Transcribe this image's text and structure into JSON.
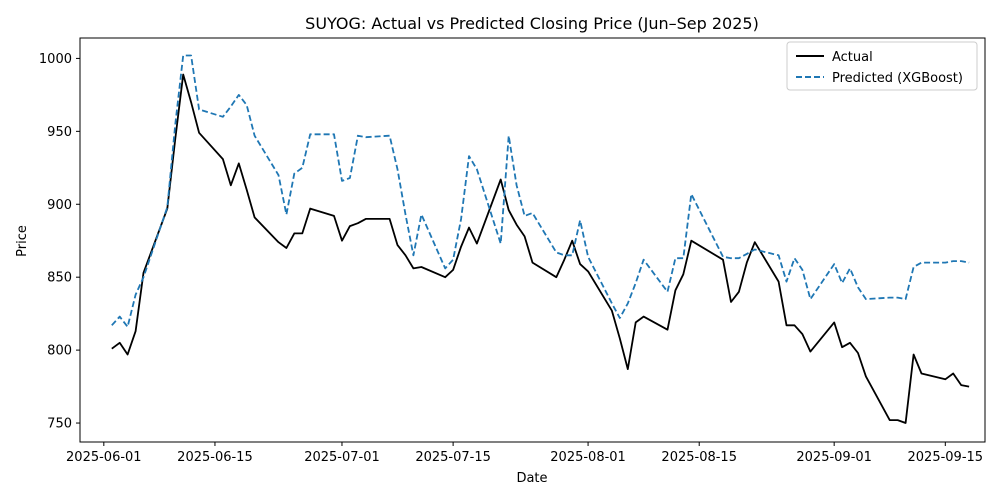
{
  "chart_data": {
    "type": "line",
    "title": "SUYOG: Actual vs Predicted Closing Price (Jun–Sep 2025)",
    "xlabel": "Date",
    "ylabel": "Price",
    "xlim": [
      "2025-05-29",
      "2025-09-20"
    ],
    "ylim": [
      737,
      1014
    ],
    "x_ticks": [
      "2025-06-01",
      "2025-06-15",
      "2025-07-01",
      "2025-07-15",
      "2025-08-01",
      "2025-08-15",
      "2025-09-01",
      "2025-09-15"
    ],
    "y_ticks": [
      750,
      800,
      850,
      900,
      950,
      1000
    ],
    "grid": false,
    "legend_position": "top-right",
    "colors": {
      "Actual": "#000000",
      "Predicted (XGBoost)": "#1f77b4"
    },
    "series": [
      {
        "name": "Actual",
        "style": "solid",
        "points": [
          [
            "2025-06-02",
            801
          ],
          [
            "2025-06-03",
            805
          ],
          [
            "2025-06-04",
            797
          ],
          [
            "2025-06-05",
            813
          ],
          [
            "2025-06-06",
            853
          ],
          [
            "2025-06-09",
            897
          ],
          [
            "2025-06-10",
            945
          ],
          [
            "2025-06-11",
            989
          ],
          [
            "2025-06-12",
            970
          ],
          [
            "2025-06-13",
            949
          ],
          [
            "2025-06-16",
            931
          ],
          [
            "2025-06-17",
            913
          ],
          [
            "2025-06-18",
            928
          ],
          [
            "2025-06-19",
            910
          ],
          [
            "2025-06-20",
            891
          ],
          [
            "2025-06-23",
            874
          ],
          [
            "2025-06-24",
            870
          ],
          [
            "2025-06-25",
            880
          ],
          [
            "2025-06-26",
            880
          ],
          [
            "2025-06-27",
            897
          ],
          [
            "2025-06-30",
            892
          ],
          [
            "2025-07-01",
            875
          ],
          [
            "2025-07-02",
            885
          ],
          [
            "2025-07-03",
            887
          ],
          [
            "2025-07-04",
            890
          ],
          [
            "2025-07-07",
            890
          ],
          [
            "2025-07-08",
            872
          ],
          [
            "2025-07-09",
            865
          ],
          [
            "2025-07-10",
            856
          ],
          [
            "2025-07-11",
            857
          ],
          [
            "2025-07-14",
            850
          ],
          [
            "2025-07-15",
            855
          ],
          [
            "2025-07-16",
            871
          ],
          [
            "2025-07-17",
            884
          ],
          [
            "2025-07-18",
            873
          ],
          [
            "2025-07-21",
            917
          ],
          [
            "2025-07-22",
            896
          ],
          [
            "2025-07-23",
            886
          ],
          [
            "2025-07-24",
            878
          ],
          [
            "2025-07-25",
            860
          ],
          [
            "2025-07-28",
            850
          ],
          [
            "2025-07-29",
            862
          ],
          [
            "2025-07-30",
            875
          ],
          [
            "2025-07-31",
            859
          ],
          [
            "2025-08-01",
            854
          ],
          [
            "2025-08-04",
            827
          ],
          [
            "2025-08-05",
            808
          ],
          [
            "2025-08-06",
            787
          ],
          [
            "2025-08-07",
            819
          ],
          [
            "2025-08-08",
            823
          ],
          [
            "2025-08-11",
            814
          ],
          [
            "2025-08-12",
            841
          ],
          [
            "2025-08-13",
            852
          ],
          [
            "2025-08-14",
            875
          ],
          [
            "2025-08-18",
            862
          ],
          [
            "2025-08-19",
            833
          ],
          [
            "2025-08-20",
            840
          ],
          [
            "2025-08-21",
            860
          ],
          [
            "2025-08-22",
            874
          ],
          [
            "2025-08-25",
            847
          ],
          [
            "2025-08-26",
            817
          ],
          [
            "2025-08-27",
            817
          ],
          [
            "2025-08-28",
            811
          ],
          [
            "2025-08-29",
            799
          ],
          [
            "2025-09-01",
            819
          ],
          [
            "2025-09-02",
            802
          ],
          [
            "2025-09-03",
            805
          ],
          [
            "2025-09-04",
            798
          ],
          [
            "2025-09-05",
            782
          ],
          [
            "2025-09-08",
            752
          ],
          [
            "2025-09-09",
            752
          ],
          [
            "2025-09-10",
            750
          ],
          [
            "2025-09-11",
            797
          ],
          [
            "2025-09-12",
            784
          ],
          [
            "2025-09-15",
            780
          ],
          [
            "2025-09-16",
            784
          ],
          [
            "2025-09-17",
            776
          ],
          [
            "2025-09-18",
            775
          ]
        ]
      },
      {
        "name": "Predicted (XGBoost)",
        "style": "dashed",
        "points": [
          [
            "2025-06-02",
            817
          ],
          [
            "2025-06-03",
            823
          ],
          [
            "2025-06-04",
            816
          ],
          [
            "2025-06-05",
            838
          ],
          [
            "2025-06-06",
            850
          ],
          [
            "2025-06-09",
            898
          ],
          [
            "2025-06-10",
            955
          ],
          [
            "2025-06-11",
            1002
          ],
          [
            "2025-06-12",
            1002
          ],
          [
            "2025-06-13",
            965
          ],
          [
            "2025-06-16",
            960
          ],
          [
            "2025-06-17",
            967
          ],
          [
            "2025-06-18",
            975
          ],
          [
            "2025-06-19",
            968
          ],
          [
            "2025-06-20",
            947
          ],
          [
            "2025-06-23",
            920
          ],
          [
            "2025-06-24",
            893
          ],
          [
            "2025-06-25",
            921
          ],
          [
            "2025-06-26",
            925
          ],
          [
            "2025-06-27",
            948
          ],
          [
            "2025-06-30",
            948
          ],
          [
            "2025-07-01",
            916
          ],
          [
            "2025-07-02",
            918
          ],
          [
            "2025-07-03",
            947
          ],
          [
            "2025-07-04",
            946
          ],
          [
            "2025-07-07",
            947
          ],
          [
            "2025-07-08",
            924
          ],
          [
            "2025-07-09",
            893
          ],
          [
            "2025-07-10",
            865
          ],
          [
            "2025-07-11",
            893
          ],
          [
            "2025-07-14",
            856
          ],
          [
            "2025-07-15",
            862
          ],
          [
            "2025-07-16",
            890
          ],
          [
            "2025-07-17",
            933
          ],
          [
            "2025-07-18",
            924
          ],
          [
            "2025-07-21",
            873
          ],
          [
            "2025-07-22",
            947
          ],
          [
            "2025-07-23",
            913
          ],
          [
            "2025-07-24",
            892
          ],
          [
            "2025-07-25",
            894
          ],
          [
            "2025-07-28",
            867
          ],
          [
            "2025-07-29",
            865
          ],
          [
            "2025-07-30",
            865
          ],
          [
            "2025-07-31",
            889
          ],
          [
            "2025-08-01",
            864
          ],
          [
            "2025-08-04",
            832
          ],
          [
            "2025-08-05",
            822
          ],
          [
            "2025-08-06",
            832
          ],
          [
            "2025-08-07",
            846
          ],
          [
            "2025-08-08",
            862
          ],
          [
            "2025-08-11",
            840
          ],
          [
            "2025-08-12",
            863
          ],
          [
            "2025-08-13",
            863
          ],
          [
            "2025-08-14",
            907
          ],
          [
            "2025-08-18",
            864
          ],
          [
            "2025-08-19",
            863
          ],
          [
            "2025-08-20",
            863
          ],
          [
            "2025-08-21",
            866
          ],
          [
            "2025-08-22",
            869
          ],
          [
            "2025-08-25",
            865
          ],
          [
            "2025-08-26",
            847
          ],
          [
            "2025-08-27",
            863
          ],
          [
            "2025-08-28",
            855
          ],
          [
            "2025-08-29",
            835
          ],
          [
            "2025-09-01",
            859
          ],
          [
            "2025-09-02",
            846
          ],
          [
            "2025-09-03",
            856
          ],
          [
            "2025-09-04",
            843
          ],
          [
            "2025-09-05",
            835
          ],
          [
            "2025-09-08",
            836
          ],
          [
            "2025-09-09",
            836
          ],
          [
            "2025-09-10",
            835
          ],
          [
            "2025-09-11",
            857
          ],
          [
            "2025-09-12",
            860
          ],
          [
            "2025-09-15",
            860
          ],
          [
            "2025-09-16",
            861
          ],
          [
            "2025-09-17",
            861
          ],
          [
            "2025-09-18",
            860
          ]
        ]
      }
    ]
  }
}
